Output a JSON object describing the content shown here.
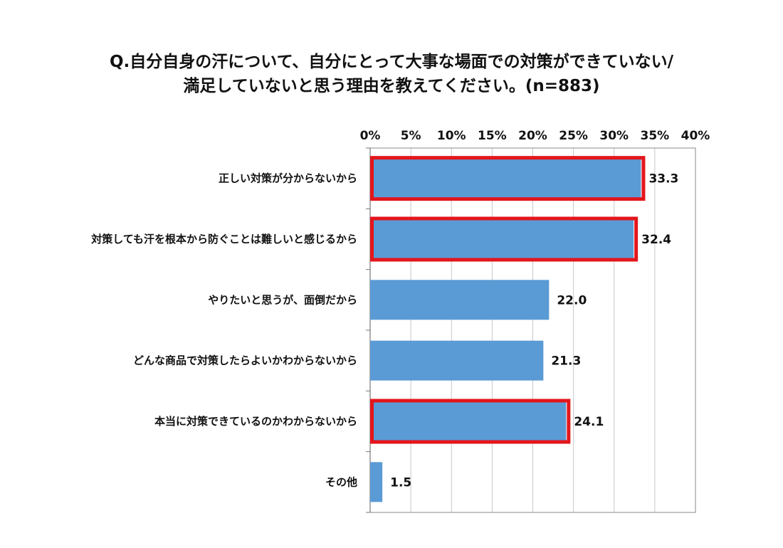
{
  "chart_data": {
    "type": "bar",
    "orientation": "horizontal",
    "title_line1": "Q.自分自身の汗について、自分にとって大事な場面での対策ができていない/",
    "title_line2": "満足していないと思う理由を教えてください。(n=883)",
    "xlim": [
      0,
      40
    ],
    "ticks": [
      "0%",
      "5%",
      "10%",
      "15%",
      "20%",
      "25%",
      "30%",
      "35%",
      "40%"
    ],
    "tick_values": [
      0,
      5,
      10,
      15,
      20,
      25,
      30,
      35,
      40
    ],
    "grid": true,
    "categories": [
      "正しい対策が分からないから",
      "対策しても汗を根本から防ぐことは難しいと感じるから",
      "やりたいと思うが、面倒だから",
      "どんな商品で対策したらよいかわからないから",
      "本当に対策できているのかわからないから",
      "その他"
    ],
    "values": [
      33.3,
      32.4,
      22.0,
      21.3,
      24.1,
      1.5
    ],
    "value_labels": [
      "33.3",
      "32.4",
      "22.0",
      "21.3",
      "24.1",
      "1.5"
    ],
    "highlighted": [
      true,
      true,
      false,
      false,
      true,
      false
    ],
    "bar_color": "#5b9bd5",
    "highlight_color": "#e3161c"
  }
}
